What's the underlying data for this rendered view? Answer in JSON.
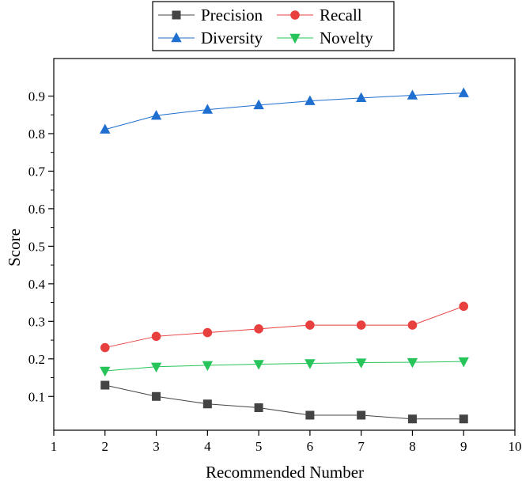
{
  "chart_data": {
    "type": "line",
    "xlabel": "Recommended Number",
    "ylabel": "Score",
    "xlim": [
      1,
      10
    ],
    "ylim": [
      0.01,
      1.0
    ],
    "xticks": [
      1,
      2,
      3,
      4,
      5,
      6,
      7,
      8,
      9,
      10
    ],
    "yticks": [
      0.1,
      0.2,
      0.3,
      0.4,
      0.5,
      0.6,
      0.7,
      0.8,
      0.9
    ],
    "grid": false,
    "legend_position": "top-center",
    "x": [
      2,
      3,
      4,
      5,
      6,
      7,
      8,
      9
    ],
    "series": [
      {
        "name": "Precision",
        "marker": "square",
        "color": "#444444",
        "values": [
          0.13,
          0.1,
          0.08,
          0.07,
          0.05,
          0.05,
          0.04,
          0.04
        ]
      },
      {
        "name": "Recall",
        "marker": "circle",
        "color": "#e8403f",
        "values": [
          0.23,
          0.26,
          0.27,
          0.28,
          0.29,
          0.29,
          0.29,
          0.34
        ]
      },
      {
        "name": "Diversity",
        "marker": "triangle-up",
        "color": "#1f6fd1",
        "values": [
          0.811,
          0.848,
          0.864,
          0.876,
          0.887,
          0.895,
          0.902,
          0.908
        ]
      },
      {
        "name": "Novelty",
        "marker": "triangle-down",
        "color": "#27c45a",
        "values": [
          0.168,
          0.179,
          0.183,
          0.186,
          0.188,
          0.19,
          0.191,
          0.193
        ]
      }
    ]
  }
}
